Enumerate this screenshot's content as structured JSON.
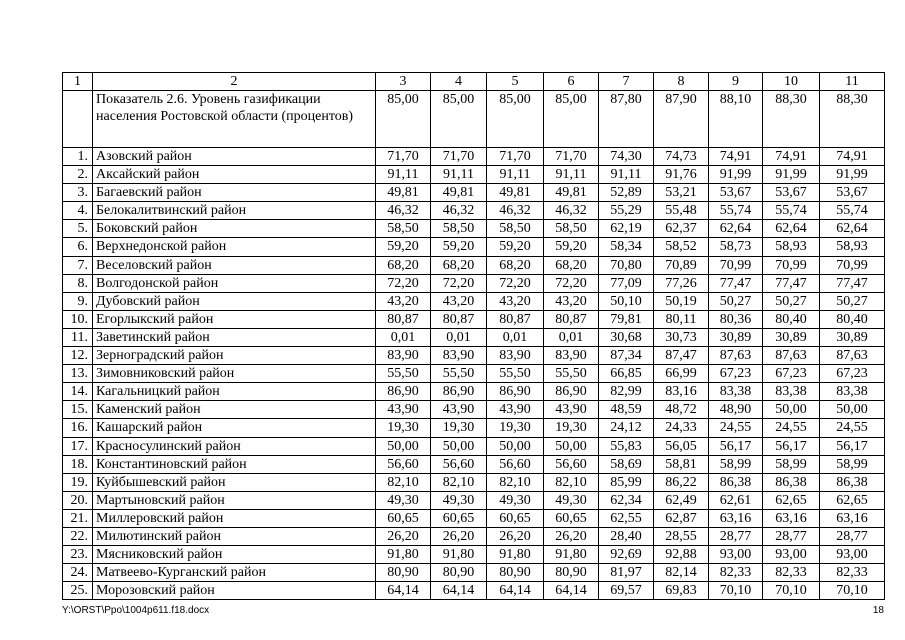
{
  "table": {
    "header": [
      "1",
      "2",
      "3",
      "4",
      "5",
      "6",
      "7",
      "8",
      "9",
      "10",
      "11"
    ],
    "indicator": {
      "name": "Показатель 2.6. Уровень газификации населения Ростовской области (процентов)",
      "values": [
        "85,00",
        "85,00",
        "85,00",
        "85,00",
        "87,80",
        "87,90",
        "88,10",
        "88,30",
        "88,30"
      ]
    },
    "rows": [
      {
        "number": "1.",
        "name": "Азовский район",
        "values": [
          "71,70",
          "71,70",
          "71,70",
          "71,70",
          "74,30",
          "74,73",
          "74,91",
          "74,91",
          "74,91"
        ]
      },
      {
        "number": "2.",
        "name": "Аксайский район",
        "values": [
          "91,11",
          "91,11",
          "91,11",
          "91,11",
          "91,11",
          "91,76",
          "91,99",
          "91,99",
          "91,99"
        ]
      },
      {
        "number": "3.",
        "name": "Багаевский район",
        "values": [
          "49,81",
          "49,81",
          "49,81",
          "49,81",
          "52,89",
          "53,21",
          "53,67",
          "53,67",
          "53,67"
        ]
      },
      {
        "number": "4.",
        "name": "Белокалитвинский район",
        "values": [
          "46,32",
          "46,32",
          "46,32",
          "46,32",
          "55,29",
          "55,48",
          "55,74",
          "55,74",
          "55,74"
        ]
      },
      {
        "number": "5.",
        "name": "Боковский район",
        "values": [
          "58,50",
          "58,50",
          "58,50",
          "58,50",
          "62,19",
          "62,37",
          "62,64",
          "62,64",
          "62,64"
        ]
      },
      {
        "number": "6.",
        "name": "Верхнедонской район",
        "values": [
          "59,20",
          "59,20",
          "59,20",
          "59,20",
          "58,34",
          "58,52",
          "58,73",
          "58,93",
          "58,93"
        ]
      },
      {
        "number": "7.",
        "name": "Веселовский район",
        "values": [
          "68,20",
          "68,20",
          "68,20",
          "68,20",
          "70,80",
          "70,89",
          "70,99",
          "70,99",
          "70,99"
        ]
      },
      {
        "number": "8.",
        "name": "Волгодонской район",
        "values": [
          "72,20",
          "72,20",
          "72,20",
          "72,20",
          "77,09",
          "77,26",
          "77,47",
          "77,47",
          "77,47"
        ]
      },
      {
        "number": "9.",
        "name": "Дубовский район",
        "values": [
          "43,20",
          "43,20",
          "43,20",
          "43,20",
          "50,10",
          "50,19",
          "50,27",
          "50,27",
          "50,27"
        ]
      },
      {
        "number": "10.",
        "name": "Егорлыкский район",
        "values": [
          "80,87",
          "80,87",
          "80,87",
          "80,87",
          "79,81",
          "80,11",
          "80,36",
          "80,40",
          "80,40"
        ]
      },
      {
        "number": "11.",
        "name": "Заветинский район",
        "values": [
          "0,01",
          "0,01",
          "0,01",
          "0,01",
          "30,68",
          "30,73",
          "30,89",
          "30,89",
          "30,89"
        ]
      },
      {
        "number": "12.",
        "name": "Зерноградский район",
        "values": [
          "83,90",
          "83,90",
          "83,90",
          "83,90",
          "87,34",
          "87,47",
          "87,63",
          "87,63",
          "87,63"
        ]
      },
      {
        "number": "13.",
        "name": "Зимовниковский район",
        "values": [
          "55,50",
          "55,50",
          "55,50",
          "55,50",
          "66,85",
          "66,99",
          "67,23",
          "67,23",
          "67,23"
        ]
      },
      {
        "number": "14.",
        "name": "Кагальницкий район",
        "values": [
          "86,90",
          "86,90",
          "86,90",
          "86,90",
          "82,99",
          "83,16",
          "83,38",
          "83,38",
          "83,38"
        ]
      },
      {
        "number": "15.",
        "name": "Каменский район",
        "values": [
          "43,90",
          "43,90",
          "43,90",
          "43,90",
          "48,59",
          "48,72",
          "48,90",
          "50,00",
          "50,00"
        ]
      },
      {
        "number": "16.",
        "name": "Кашарский район",
        "values": [
          "19,30",
          "19,30",
          "19,30",
          "19,30",
          "24,12",
          "24,33",
          "24,55",
          "24,55",
          "24,55"
        ]
      },
      {
        "number": "17.",
        "name": "Красносулинский район",
        "values": [
          "50,00",
          "50,00",
          "50,00",
          "50,00",
          "55,83",
          "56,05",
          "56,17",
          "56,17",
          "56,17"
        ]
      },
      {
        "number": "18.",
        "name": "Константиновский район",
        "values": [
          "56,60",
          "56,60",
          "56,60",
          "56,60",
          "58,69",
          "58,81",
          "58,99",
          "58,99",
          "58,99"
        ]
      },
      {
        "number": "19.",
        "name": "Куйбышевский район",
        "values": [
          "82,10",
          "82,10",
          "82,10",
          "82,10",
          "85,99",
          "86,22",
          "86,38",
          "86,38",
          "86,38"
        ]
      },
      {
        "number": "20.",
        "name": "Мартыновский район",
        "values": [
          "49,30",
          "49,30",
          "49,30",
          "49,30",
          "62,34",
          "62,49",
          "62,61",
          "62,65",
          "62,65"
        ]
      },
      {
        "number": "21.",
        "name": "Миллеровский район",
        "values": [
          "60,65",
          "60,65",
          "60,65",
          "60,65",
          "62,55",
          "62,87",
          "63,16",
          "63,16",
          "63,16"
        ]
      },
      {
        "number": "22.",
        "name": "Милютинский район",
        "values": [
          "26,20",
          "26,20",
          "26,20",
          "26,20",
          "28,40",
          "28,55",
          "28,77",
          "28,77",
          "28,77"
        ]
      },
      {
        "number": "23.",
        "name": "Мясниковский район",
        "values": [
          "91,80",
          "91,80",
          "91,80",
          "91,80",
          "92,69",
          "92,88",
          "93,00",
          "93,00",
          "93,00"
        ]
      },
      {
        "number": "24.",
        "name": "Матвеево-Курганский район",
        "values": [
          "80,90",
          "80,90",
          "80,90",
          "80,90",
          "81,97",
          "82,14",
          "82,33",
          "82,33",
          "82,33"
        ]
      },
      {
        "number": "25.",
        "name": "Морозовский район",
        "values": [
          "64,14",
          "64,14",
          "64,14",
          "64,14",
          "69,57",
          "69,83",
          "70,10",
          "70,10",
          "70,10"
        ]
      }
    ]
  },
  "footer": {
    "path": "Y:\\ORST\\Ppo\\1004p611.f18.docx",
    "page": "18"
  }
}
